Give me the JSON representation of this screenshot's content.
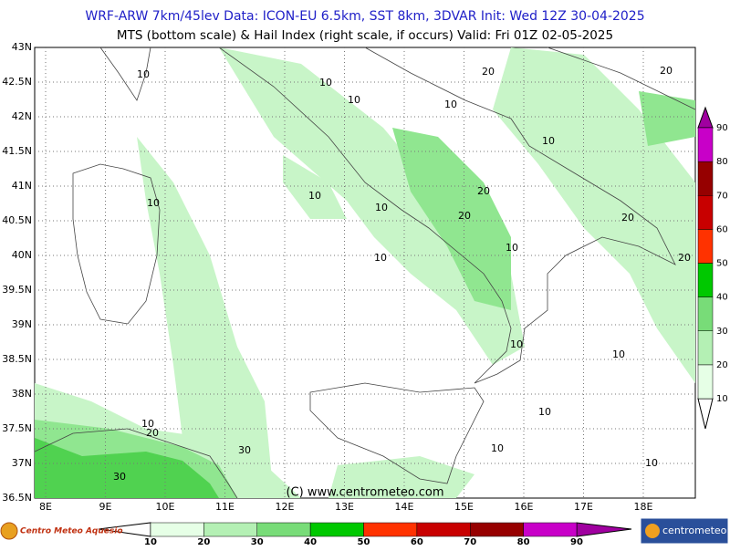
{
  "header": {
    "line1": "WRF-ARW 7km/45lev   Data: ICON-EU 6.5km, SST 8km, 3DVAR   Init: Wed 12Z 30-04-2025",
    "line2": "MTS (bottom scale) & Hail Index (right scale, if occurs) Valid: Fri 01Z 02-05-2025"
  },
  "map": {
    "lat_labels": [
      "43N",
      "42.5N",
      "42N",
      "41.5N",
      "41N",
      "40.5N",
      "40N",
      "39.5N",
      "39N",
      "38.5N",
      "38N",
      "37.5N",
      "37N",
      "36.5N"
    ],
    "lon_labels": [
      "8E",
      "9E",
      "10E",
      "11E",
      "12E",
      "13E",
      "14E",
      "15E",
      "16E",
      "17E",
      "18E"
    ],
    "contour_labels": [
      "10",
      "10",
      "10",
      "20",
      "20",
      "10",
      "10",
      "10",
      "10",
      "10",
      "20",
      "20",
      "10",
      "20",
      "20",
      "10",
      "10",
      "10",
      "10",
      "10",
      "20",
      "10",
      "30",
      "30",
      "10"
    ],
    "copyright": "(C) www.centrometeo.com"
  },
  "right_scale": {
    "labels": [
      "10",
      "20",
      "30",
      "40",
      "50",
      "60",
      "70",
      "80",
      "90"
    ]
  },
  "bottom_scale": {
    "labels": [
      "10",
      "20",
      "30",
      "40",
      "50",
      "60",
      "70",
      "80",
      "90"
    ]
  },
  "footer": {
    "left_logo": "Centro Meteo Aquesio",
    "right_logo": "centrometeo"
  }
}
